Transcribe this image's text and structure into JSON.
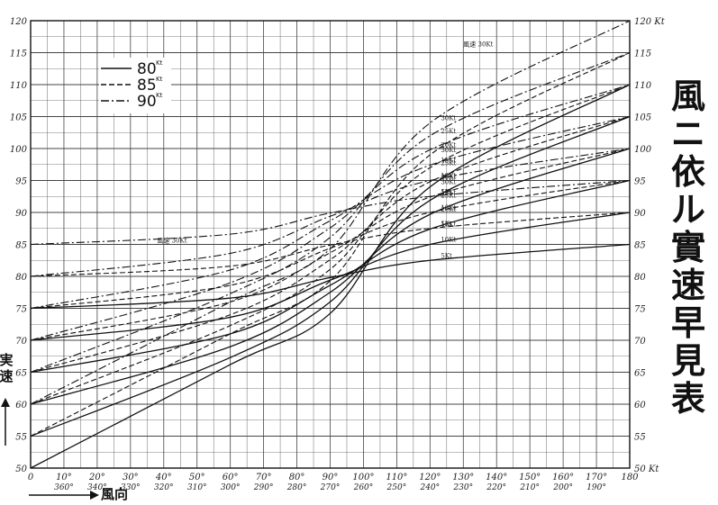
{
  "chart_data": {
    "type": "line",
    "title": "風ニ依ル實速早見表",
    "xlabel": "風向",
    "ylabel": "実速",
    "xlim": [
      0,
      180
    ],
    "ylim": [
      50,
      120
    ],
    "grid": true,
    "x_ticks": [
      {
        "deg": 0,
        "top": "0",
        "bottom": ""
      },
      {
        "deg": 10,
        "top": "10°",
        "bottom": "360°"
      },
      {
        "deg": 20,
        "top": "20°",
        "bottom": "340°"
      },
      {
        "deg": 30,
        "top": "30°",
        "bottom": "330°"
      },
      {
        "deg": 40,
        "top": "40°",
        "bottom": "320°"
      },
      {
        "deg": 50,
        "top": "50°",
        "bottom": "310°"
      },
      {
        "deg": 60,
        "top": "60°",
        "bottom": "300°"
      },
      {
        "deg": 70,
        "top": "70°",
        "bottom": "290°"
      },
      {
        "deg": 80,
        "top": "80°",
        "bottom": "280°"
      },
      {
        "deg": 90,
        "top": "90°",
        "bottom": "270°"
      },
      {
        "deg": 100,
        "top": "100°",
        "bottom": "260°"
      },
      {
        "deg": 110,
        "top": "110°",
        "bottom": "250°"
      },
      {
        "deg": 120,
        "top": "120°",
        "bottom": "240°"
      },
      {
        "deg": 130,
        "top": "130°",
        "bottom": "230°"
      },
      {
        "deg": 140,
        "top": "140°",
        "bottom": "220°"
      },
      {
        "deg": 150,
        "top": "150°",
        "bottom": "210°"
      },
      {
        "deg": 160,
        "top": "160°",
        "bottom": "200°"
      },
      {
        "deg": 170,
        "top": "170°",
        "bottom": "190°"
      },
      {
        "deg": 180,
        "top": "180",
        "bottom": ""
      }
    ],
    "y_ticks_left": [
      "50",
      "55",
      "60",
      "65",
      "70",
      "75",
      "80",
      "85",
      "90",
      "95",
      "100",
      "105",
      "110",
      "115",
      "120"
    ],
    "y_ticks_right": [
      "50 Kt",
      "55",
      "60",
      "65",
      "70",
      "75",
      "80",
      "85",
      "90",
      "95",
      "100",
      "105",
      "110",
      "115",
      "120 Kt"
    ],
    "legend": [
      {
        "label": "80",
        "unit": "Kt",
        "style": "solid"
      },
      {
        "label": "85",
        "unit": "Kt",
        "style": "dashed"
      },
      {
        "label": "90",
        "unit": "Kt",
        "style": "dashdot"
      }
    ],
    "series": [
      {
        "airspeed": 80,
        "wind": 5,
        "label": "5Kt",
        "style": "solid",
        "points": [
          [
            0,
            75
          ],
          [
            60,
            76.6
          ],
          [
            90,
            79.8
          ],
          [
            120,
            82.5
          ],
          [
            180,
            85
          ]
        ]
      },
      {
        "airspeed": 80,
        "wind": 10,
        "label": "10Kt",
        "style": "solid",
        "points": [
          [
            0,
            70
          ],
          [
            60,
            73.6
          ],
          [
            90,
            79.4
          ],
          [
            120,
            85
          ],
          [
            180,
            90
          ]
        ]
      },
      {
        "airspeed": 80,
        "wind": 15,
        "label": "15Kt",
        "style": "solid",
        "points": [
          [
            0,
            65
          ],
          [
            60,
            71
          ],
          [
            90,
            78.6
          ],
          [
            120,
            87.4
          ],
          [
            180,
            95
          ]
        ]
      },
      {
        "airspeed": 80,
        "wind": 20,
        "label": "20Kt",
        "style": "solid",
        "points": [
          [
            0,
            60
          ],
          [
            60,
            69
          ],
          [
            90,
            77.5
          ],
          [
            120,
            89.7
          ],
          [
            180,
            100
          ]
        ]
      },
      {
        "airspeed": 80,
        "wind": 25,
        "label": "25Kt",
        "style": "solid",
        "points": [
          [
            0,
            55
          ],
          [
            60,
            67.3
          ],
          [
            90,
            76
          ],
          [
            120,
            91.9
          ],
          [
            180,
            105
          ]
        ]
      },
      {
        "airspeed": 80,
        "wind": 30,
        "label": "30Kt",
        "style": "solid",
        "points": [
          [
            0,
            50
          ],
          [
            60,
            66.2
          ],
          [
            90,
            74.2
          ],
          [
            120,
            94
          ],
          [
            180,
            110
          ]
        ]
      },
      {
        "airspeed": 85,
        "wind": 5,
        "label": "5Kt",
        "style": "dashed",
        "points": [
          [
            0,
            80
          ],
          [
            60,
            81.6
          ],
          [
            90,
            84.9
          ],
          [
            120,
            87.5
          ],
          [
            180,
            90
          ]
        ]
      },
      {
        "airspeed": 85,
        "wind": 10,
        "label": "10Kt",
        "style": "dashed",
        "points": [
          [
            0,
            75
          ],
          [
            60,
            78.6
          ],
          [
            90,
            84.4
          ],
          [
            120,
            90
          ],
          [
            180,
            95
          ]
        ]
      },
      {
        "airspeed": 85,
        "wind": 15,
        "label": "15Kt",
        "style": "dashed",
        "points": [
          [
            0,
            70
          ],
          [
            60,
            76
          ],
          [
            90,
            83.7
          ],
          [
            120,
            92.4
          ],
          [
            180,
            100
          ]
        ]
      },
      {
        "airspeed": 85,
        "wind": 20,
        "label": "20Kt",
        "style": "dashed",
        "points": [
          [
            0,
            65
          ],
          [
            60,
            74
          ],
          [
            90,
            82.6
          ],
          [
            120,
            94.8
          ],
          [
            180,
            105
          ]
        ]
      },
      {
        "airspeed": 85,
        "wind": 25,
        "label": "25Kt",
        "style": "dashed",
        "points": [
          [
            0,
            60
          ],
          [
            60,
            72.3
          ],
          [
            90,
            81.1
          ],
          [
            120,
            97
          ],
          [
            180,
            110
          ]
        ]
      },
      {
        "airspeed": 85,
        "wind": 30,
        "label": "30Kt",
        "style": "dashed",
        "points": [
          [
            0,
            55
          ],
          [
            60,
            71
          ],
          [
            90,
            79.3
          ],
          [
            120,
            99
          ],
          [
            180,
            115
          ]
        ]
      },
      {
        "airspeed": 90,
        "wind": 5,
        "label": "5Kt",
        "style": "dashdot",
        "points": [
          [
            0,
            85
          ],
          [
            60,
            86.6
          ],
          [
            90,
            89.9
          ],
          [
            120,
            92.5
          ],
          [
            180,
            95
          ]
        ]
      },
      {
        "airspeed": 90,
        "wind": 10,
        "label": "10Kt",
        "style": "dashdot",
        "points": [
          [
            0,
            80
          ],
          [
            60,
            83.6
          ],
          [
            90,
            89.4
          ],
          [
            120,
            95
          ],
          [
            180,
            100
          ]
        ]
      },
      {
        "airspeed": 90,
        "wind": 15,
        "label": "15Kt",
        "style": "dashdot",
        "points": [
          [
            0,
            75
          ],
          [
            60,
            81
          ],
          [
            90,
            88.7
          ],
          [
            120,
            97.4
          ],
          [
            180,
            105
          ]
        ]
      },
      {
        "airspeed": 90,
        "wind": 20,
        "label": "20Kt",
        "style": "dashdot",
        "points": [
          [
            0,
            70
          ],
          [
            60,
            79
          ],
          [
            90,
            87.6
          ],
          [
            120,
            99.8
          ],
          [
            180,
            110
          ]
        ]
      },
      {
        "airspeed": 90,
        "wind": 25,
        "label": "25Kt",
        "style": "dashdot",
        "points": [
          [
            0,
            65
          ],
          [
            60,
            77.3
          ],
          [
            90,
            86.1
          ],
          [
            120,
            102
          ],
          [
            180,
            115
          ]
        ]
      },
      {
        "airspeed": 90,
        "wind": 30,
        "label": "30Kt",
        "style": "dashdot",
        "points": [
          [
            0,
            60
          ],
          [
            60,
            76
          ],
          [
            90,
            84.3
          ],
          [
            120,
            104
          ],
          [
            180,
            120
          ]
        ]
      }
    ],
    "annotations": [
      {
        "text": "風速 30Kt",
        "x": 130,
        "y": 116
      },
      {
        "text": "風速 30Kt",
        "x": 38,
        "y": 85.3
      }
    ]
  },
  "colors": {
    "ink": "#1a1a1a",
    "grid": "#333333",
    "paper": "#ffffff"
  }
}
